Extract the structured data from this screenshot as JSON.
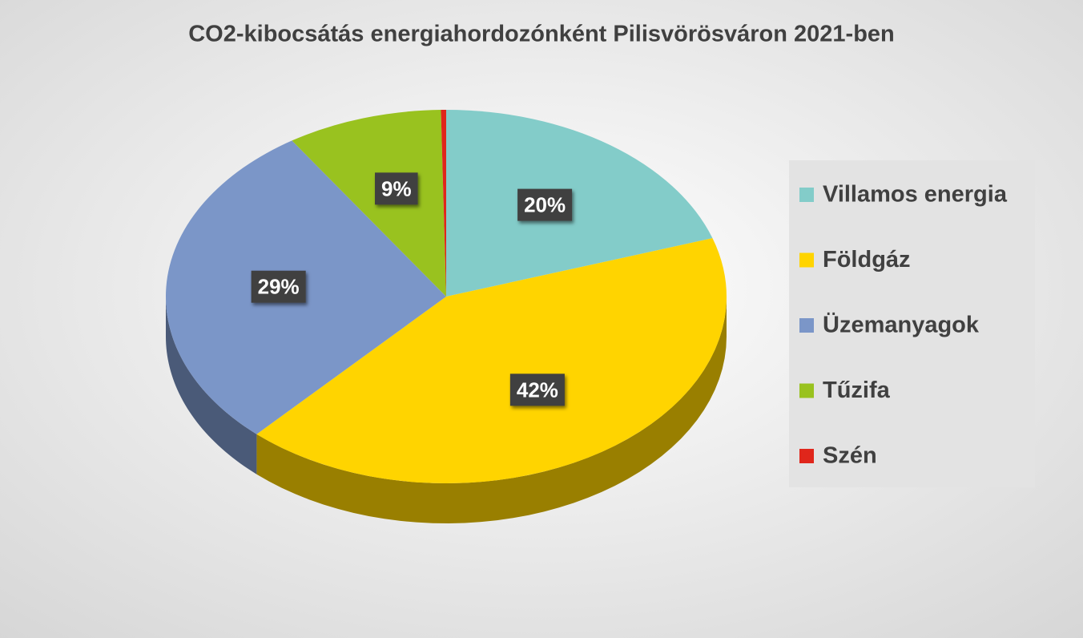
{
  "chart_data": {
    "type": "pie",
    "title": "CO2-kibocsátás energiahordozónként Pilisvörösváron 2021-ben",
    "categories": [
      "Villamos energia",
      "Földgáz",
      "Üzemanyagok",
      "Tűzifa",
      "Szén"
    ],
    "values": [
      20,
      42,
      29,
      9,
      0.3
    ],
    "value_labels": [
      "20%",
      "42%",
      "29%",
      "9%",
      null
    ],
    "colors": [
      "#83ccc9",
      "#ffd400",
      "#7b96c8",
      "#99c21f",
      "#e0261b"
    ],
    "legend": "right"
  }
}
